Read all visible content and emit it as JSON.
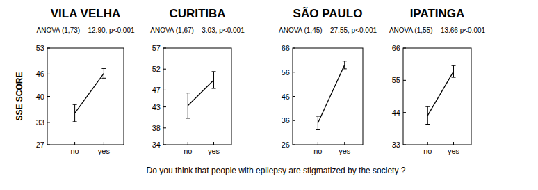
{
  "chart_data": [
    {
      "type": "line",
      "title": "VILA VELHA",
      "subtitle": "ANOVA (1,73) = 12.90, p<0.001",
      "y_label": "SSE SCORE",
      "categories": [
        "no",
        "yes"
      ],
      "values": [
        35.5,
        46.2
      ],
      "errors": [
        2.3,
        1.3
      ],
      "color": "#000000",
      "marker": "none",
      "line_style": "solid",
      "ylim": [
        27,
        53
      ],
      "yticks": [
        27,
        33,
        40,
        46,
        53
      ],
      "grid": false
    },
    {
      "type": "line",
      "title": "CURITIBA",
      "subtitle": "ANOVA (1,67) = 3.03, p<0.001",
      "categories": [
        "no",
        "yes"
      ],
      "values": [
        43.3,
        49.4
      ],
      "errors": [
        3.0,
        2.0
      ],
      "color": "#000000",
      "marker": "none",
      "line_style": "solid",
      "ylim": [
        34,
        57
      ],
      "yticks": [
        34,
        38,
        43,
        47,
        52,
        57
      ],
      "grid": false
    },
    {
      "type": "line",
      "title": "SÃO PAULO",
      "subtitle": "ANOVA (1,45) = 27.55, p<0.001",
      "categories": [
        "no",
        "yes"
      ],
      "values": [
        35.0,
        59.0
      ],
      "errors": [
        2.8,
        1.6
      ],
      "color": "#000000",
      "marker": "none",
      "line_style": "solid",
      "ylim": [
        26,
        66
      ],
      "yticks": [
        26,
        36,
        46,
        56,
        66
      ],
      "grid": false
    },
    {
      "type": "line",
      "title": "IPATINGA",
      "subtitle": "ANOVA (1,55) = 13.66 p<0.001",
      "categories": [
        "no",
        "yes"
      ],
      "values": [
        43.0,
        58.0
      ],
      "errors": [
        3.0,
        2.0
      ],
      "color": "#000000",
      "marker": "none",
      "line_style": "solid",
      "ylim": [
        33,
        66
      ],
      "yticks": [
        33,
        44,
        55,
        66
      ],
      "grid": false
    }
  ],
  "caption": "Do you think that people with epilepsy are stigmatized by the society ?"
}
